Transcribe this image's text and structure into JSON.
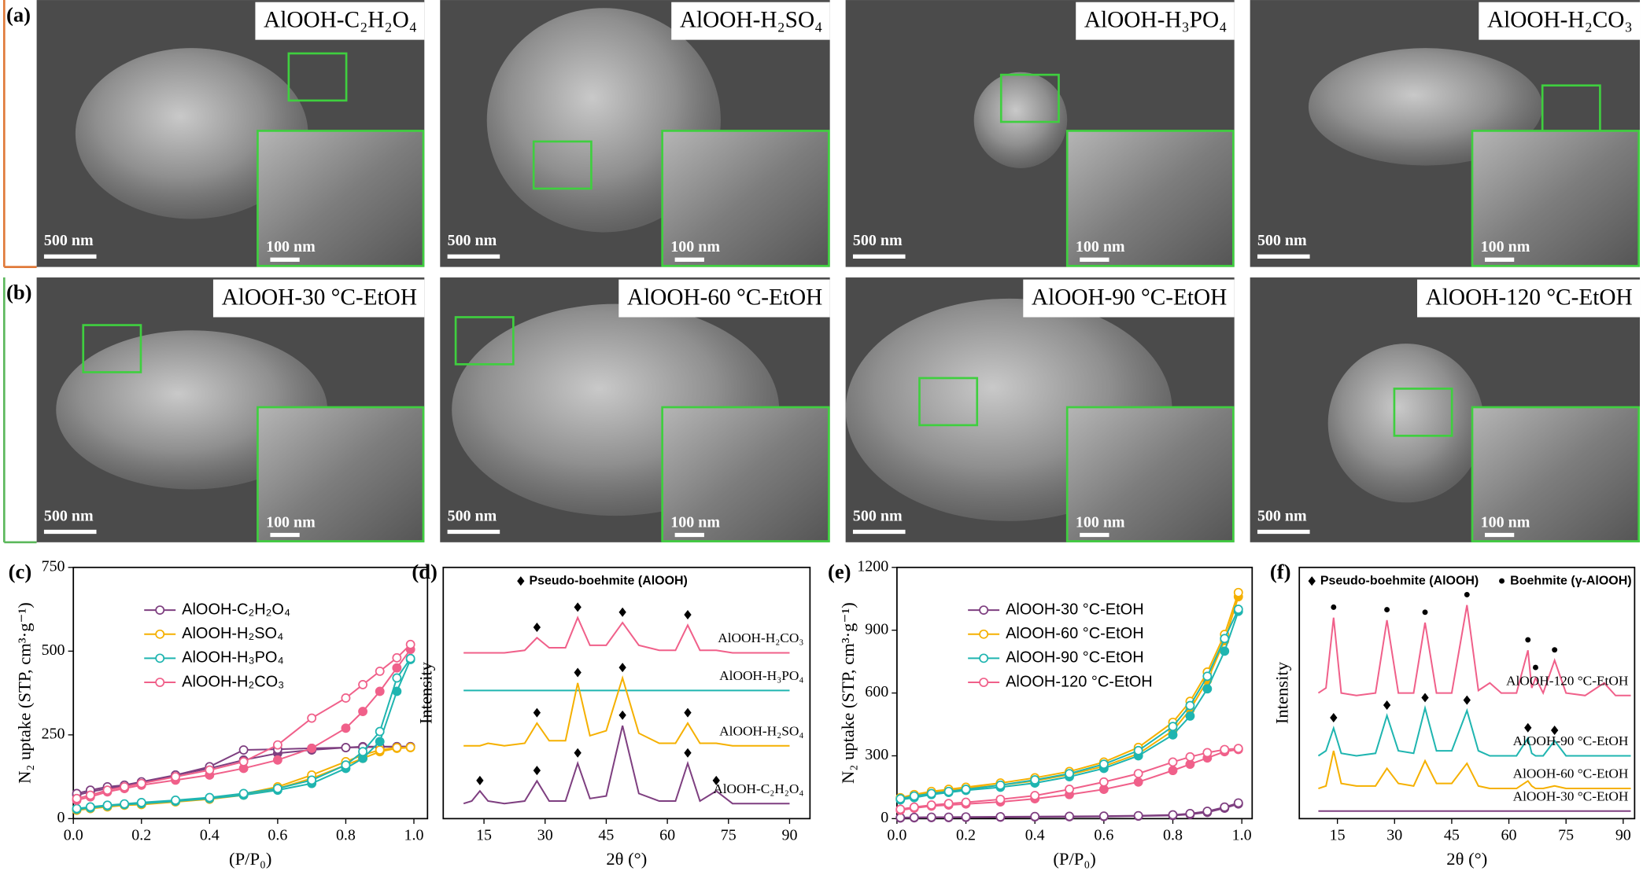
{
  "sem": {
    "rows": [
      {
        "label": "(a)",
        "panels": [
          {
            "title": "AlOOH-C₂H₂O₄",
            "scale_bar": "500 nm",
            "inset_scale_bar": "100 nm"
          },
          {
            "title": "AlOOH-H₂SO₄",
            "scale_bar": "500 nm",
            "inset_scale_bar": "100 nm"
          },
          {
            "title": "AlOOH-H₃PO₄",
            "scale_bar": "500 nm",
            "inset_scale_bar": "100 nm"
          },
          {
            "title": "AlOOH-H₂CO₃",
            "scale_bar": "500 nm",
            "inset_scale_bar": "100 nm"
          }
        ]
      },
      {
        "label": "(b)",
        "panels": [
          {
            "title": "AlOOH-30 °C-EtOH",
            "scale_bar": "500 nm",
            "inset_scale_bar": "100 nm"
          },
          {
            "title": "AlOOH-60 °C-EtOH",
            "scale_bar": "500 nm",
            "inset_scale_bar": "100 nm"
          },
          {
            "title": "AlOOH-90 °C-EtOH",
            "scale_bar": "500 nm",
            "inset_scale_bar": "100 nm"
          },
          {
            "title": "AlOOH-120 °C-EtOH",
            "scale_bar": "500 nm",
            "inset_scale_bar": "100 nm"
          }
        ]
      }
    ]
  },
  "chart_data": [
    {
      "type": "isotherm",
      "label": "(c)",
      "x_label": "(P/P₀)",
      "y_label": "N₂ uptake (STP, cm³·g⁻¹)",
      "x": [
        0.01,
        0.05,
        0.1,
        0.15,
        0.2,
        0.3,
        0.4,
        0.5,
        0.6,
        0.7,
        0.8,
        0.85,
        0.9,
        0.95,
        0.99
      ],
      "xlim": [
        0,
        1.04
      ],
      "xticks": [
        {
          "value": 0,
          "label": "0.0"
        },
        0.2,
        0.4,
        0.6,
        0.8,
        {
          "value": 1,
          "label": "1.0"
        }
      ],
      "ylim": [
        0,
        750
      ],
      "yticks": [
        0,
        250,
        500,
        750
      ],
      "legend": "center left",
      "series": [
        {
          "name": "AlOOH-C₂H₂O₄",
          "color": "#7e3f80",
          "adsorption": [
            70,
            80,
            90,
            98,
            105,
            130,
            150,
            175,
            195,
            205,
            212,
            215,
            215,
            215,
            215
          ],
          "desorption": [
            75,
            85,
            95,
            100,
            110,
            130,
            155,
            205,
            207,
            210,
            212,
            213,
            214,
            215,
            215
          ]
        },
        {
          "name": "AlOOH-H₂SO₄",
          "color": "#f5b000",
          "adsorption": [
            25,
            30,
            35,
            40,
            42,
            50,
            58,
            70,
            90,
            120,
            160,
            180,
            200,
            210,
            212
          ],
          "desorption": [
            26,
            31,
            36,
            41,
            44,
            52,
            60,
            74,
            95,
            130,
            170,
            190,
            205,
            212,
            213
          ]
        },
        {
          "name": "AlOOH-H₃PO₄",
          "color": "#1fb5b0",
          "adsorption": [
            28,
            32,
            38,
            42,
            45,
            52,
            60,
            70,
            85,
            105,
            150,
            180,
            230,
            380,
            475
          ],
          "desorption": [
            30,
            35,
            40,
            44,
            48,
            55,
            63,
            75,
            90,
            115,
            160,
            200,
            260,
            420,
            478
          ]
        },
        {
          "name": "AlOOH-H₂CO₃",
          "color": "#f0608a",
          "adsorption": [
            55,
            65,
            80,
            90,
            100,
            115,
            130,
            150,
            175,
            210,
            270,
            320,
            380,
            450,
            505
          ],
          "desorption": [
            60,
            70,
            85,
            95,
            105,
            125,
            145,
            170,
            220,
            300,
            360,
            400,
            440,
            480,
            520
          ]
        }
      ]
    },
    {
      "type": "diffractogram",
      "label": "(d)",
      "x_label": "2θ (°)",
      "y_label": "Intensity",
      "x": [
        10,
        12,
        14,
        16,
        20,
        25,
        28,
        31,
        35,
        38,
        41,
        45,
        49,
        53,
        58,
        62,
        65,
        68,
        72,
        76,
        80,
        85,
        90
      ],
      "xlim": [
        5,
        95
      ],
      "xticks": [
        15,
        30,
        45,
        60,
        75,
        90
      ],
      "ylim": [
        0,
        100
      ],
      "notes": [
        {
          "symbol": "diamond",
          "text": "Pseudo-boehmite (AlOOH)"
        }
      ],
      "series": [
        {
          "name": "AlOOH-H₂CO₃",
          "color": "#f0608a",
          "peak_symbol": "diamond",
          "values": [
            66,
            66,
            66,
            66,
            66,
            67,
            72,
            68,
            68,
            80,
            69,
            69,
            78,
            69,
            67,
            67,
            77,
            67,
            67,
            66,
            66,
            66,
            66
          ]
        },
        {
          "name": "AlOOH-H₃PO₄",
          "color": "#1fb5b0",
          "values": [
            51,
            51,
            51,
            51,
            51,
            51,
            51,
            51,
            51,
            51,
            51,
            51,
            51,
            51,
            51,
            51,
            51,
            51,
            51,
            51,
            51,
            51,
            51
          ]
        },
        {
          "name": "AlOOH-H₂SO₄",
          "color": "#f5b000",
          "peak_symbol": "diamond",
          "values": [
            29,
            29,
            29,
            30,
            29,
            30,
            38,
            31,
            31,
            54,
            33,
            35,
            56,
            34,
            30,
            30,
            38,
            30,
            30,
            29,
            29,
            29,
            29
          ]
        },
        {
          "name": "AlOOH-C₂H₂O₄",
          "color": "#7e3f80",
          "peak_symbol": "diamond",
          "values": [
            6,
            7,
            11,
            7,
            6,
            7,
            15,
            7,
            7,
            22,
            8,
            9,
            37,
            10,
            7,
            7,
            22,
            7,
            11,
            6,
            6,
            6,
            6
          ]
        }
      ]
    },
    {
      "type": "isotherm",
      "label": "(e)",
      "x_label": "(P/P₀)",
      "y_label": "N₂ uptake (STP, cm³·g⁻¹)",
      "x": [
        0.01,
        0.05,
        0.1,
        0.15,
        0.2,
        0.3,
        0.4,
        0.5,
        0.6,
        0.7,
        0.8,
        0.85,
        0.9,
        0.95,
        0.99
      ],
      "xlim": [
        0,
        1.03
      ],
      "xticks": [
        {
          "value": 0,
          "label": "0.0"
        },
        0.2,
        0.4,
        0.6,
        0.8,
        {
          "value": 1,
          "label": "1.0"
        }
      ],
      "ylim": [
        0,
        1200
      ],
      "yticks": [
        0,
        300,
        600,
        900,
        1200
      ],
      "legend": "center left",
      "series": [
        {
          "name": "AlOOH-30 °C-EtOH",
          "color": "#7e3f80",
          "adsorption": [
            3,
            4,
            5,
            5,
            6,
            7,
            8,
            9,
            10,
            12,
            15,
            20,
            30,
            50,
            70
          ],
          "desorption": [
            5,
            6,
            7,
            7,
            8,
            9,
            10,
            11,
            12,
            14,
            18,
            24,
            35,
            55,
            75
          ]
        },
        {
          "name": "AlOOH-60 °C-EtOH",
          "color": "#f5b000",
          "adsorption": [
            95,
            110,
            125,
            135,
            145,
            160,
            180,
            210,
            250,
            310,
            420,
            520,
            660,
            850,
            1060
          ],
          "desorption": [
            100,
            115,
            130,
            140,
            150,
            170,
            195,
            225,
            270,
            340,
            460,
            560,
            700,
            880,
            1080
          ]
        },
        {
          "name": "AlOOH-90 °C-EtOH",
          "color": "#1fb5b0",
          "adsorption": [
            90,
            100,
            115,
            125,
            135,
            150,
            170,
            200,
            240,
            300,
            400,
            490,
            620,
            800,
            990
          ],
          "desorption": [
            95,
            108,
            120,
            130,
            140,
            160,
            185,
            215,
            260,
            325,
            440,
            540,
            680,
            860,
            1000
          ]
        },
        {
          "name": "AlOOH-120 °C-EtOH",
          "color": "#f0608a",
          "adsorption": [
            40,
            50,
            60,
            65,
            70,
            80,
            95,
            115,
            140,
            175,
            230,
            260,
            290,
            320,
            330
          ],
          "desorption": [
            45,
            55,
            65,
            72,
            78,
            92,
            110,
            140,
            175,
            215,
            270,
            295,
            315,
            330,
            335
          ]
        }
      ]
    },
    {
      "type": "diffractogram",
      "label": "(f)",
      "x_label": "2θ (°)",
      "y_label": "Intensity",
      "x": [
        10,
        12,
        14,
        16,
        20,
        25,
        28,
        31,
        35,
        38,
        41,
        45,
        49,
        52,
        55,
        58,
        62,
        65,
        66,
        67,
        69,
        72,
        75,
        80,
        85,
        88,
        92
      ],
      "xlim": [
        5,
        93
      ],
      "xticks": [
        15,
        30,
        45,
        60,
        75,
        90
      ],
      "ylim": [
        0,
        100
      ],
      "notes": [
        {
          "symbol": "diamond",
          "text": "Pseudo-boehmite (AlOOH)"
        },
        {
          "symbol": "dot",
          "text": "Boehmite (γ-AlOOH)"
        }
      ],
      "series": [
        {
          "name": "AlOOH-120 °C-EtOH",
          "color": "#f0608a",
          "peak_symbol": "dot",
          "values": [
            50,
            52,
            80,
            50,
            49,
            50,
            79,
            50,
            50,
            78,
            50,
            50,
            85,
            51,
            54,
            50,
            50,
            67,
            52,
            56,
            50,
            63,
            50,
            49,
            54,
            49,
            49
          ]
        },
        {
          "name": "AlOOH-90 °C-EtOH",
          "color": "#1fb5b0",
          "peak_symbol": "diamond",
          "values": [
            25,
            27,
            36,
            26,
            25,
            26,
            41,
            27,
            26,
            44,
            27,
            27,
            43,
            27,
            25,
            25,
            25,
            32,
            26,
            25,
            25,
            31,
            25,
            25,
            25,
            25,
            25
          ]
        },
        {
          "name": "AlOOH-60 °C-EtOH",
          "color": "#f5b000",
          "values": [
            12,
            13,
            27,
            14,
            13,
            13,
            20,
            14,
            13,
            23,
            14,
            14,
            22,
            13,
            12,
            12,
            12,
            15,
            13,
            12,
            12,
            13,
            12,
            12,
            12,
            12,
            12
          ]
        },
        {
          "name": "AlOOH-30 °C-EtOH",
          "color": "#7e3f80",
          "values": [
            3,
            3,
            3,
            3,
            3,
            3,
            3,
            3,
            3,
            3,
            3,
            3,
            3,
            3,
            3,
            3,
            3,
            3,
            3,
            3,
            3,
            3,
            3,
            3,
            3,
            3,
            3
          ]
        }
      ]
    }
  ]
}
